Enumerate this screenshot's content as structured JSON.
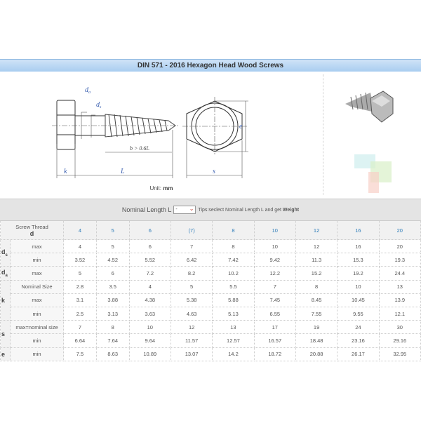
{
  "title": "DIN 571 - 2016 Hexagon Head Wood Screws",
  "diagram": {
    "labels": {
      "da": "d",
      "da_sub": "a",
      "ds": "d",
      "ds_sub": "s",
      "b": "b > 0.6L",
      "k": "k",
      "L": "L",
      "s": "s",
      "e": "e"
    },
    "unit_label": "Unit:",
    "unit_value": "mm"
  },
  "length_bar": {
    "label": "Nominal Length L",
    "select_value": "-",
    "tips_prefix": "Tips:seclect Nominal Length L and get ",
    "tips_bold": "Weight"
  },
  "table": {
    "header": {
      "label": "Screw Thread",
      "symbol": "d",
      "sizes": [
        "4",
        "5",
        "6",
        "(7)",
        "8",
        "10",
        "12",
        "16",
        "20"
      ]
    },
    "rows": [
      {
        "sym": "d",
        "sub": "s",
        "label": "max",
        "values": [
          "4",
          "5",
          "6",
          "7",
          "8",
          "10",
          "12",
          "16",
          "20"
        ]
      },
      {
        "label": "min",
        "values": [
          "3.52",
          "4.52",
          "5.52",
          "6.42",
          "7.42",
          "9.42",
          "11.3",
          "15.3",
          "19.3"
        ]
      },
      {
        "sym": "d",
        "sub": "a",
        "label": "max",
        "values": [
          "5",
          "6",
          "7.2",
          "8.2",
          "10.2",
          "12.2",
          "15.2",
          "19.2",
          "24.4"
        ]
      },
      {
        "sym": "k",
        "label": "Nominal Size",
        "values": [
          "2.8",
          "3.5",
          "4",
          "5",
          "5.5",
          "7",
          "8",
          "10",
          "13"
        ]
      },
      {
        "label": "max",
        "values": [
          "3.1",
          "3.88",
          "4.38",
          "5.38",
          "5.88",
          "7.45",
          "8.45",
          "10.45",
          "13.9"
        ]
      },
      {
        "label": "min",
        "values": [
          "2.5",
          "3.13",
          "3.63",
          "4.63",
          "5.13",
          "6.55",
          "7.55",
          "9.55",
          "12.1"
        ]
      },
      {
        "sym": "s",
        "label": "max=nominal size",
        "values": [
          "7",
          "8",
          "10",
          "12",
          "13",
          "17",
          "19",
          "24",
          "30"
        ]
      },
      {
        "label": "min",
        "values": [
          "6.64",
          "7.64",
          "9.64",
          "11.57",
          "12.57",
          "16.57",
          "18.48",
          "23.16",
          "29.16"
        ]
      },
      {
        "sym": "e",
        "label": "min",
        "values": [
          "7.5",
          "8.63",
          "10.89",
          "13.07",
          "14.2",
          "18.72",
          "20.88",
          "26.17",
          "32.95"
        ]
      }
    ]
  }
}
